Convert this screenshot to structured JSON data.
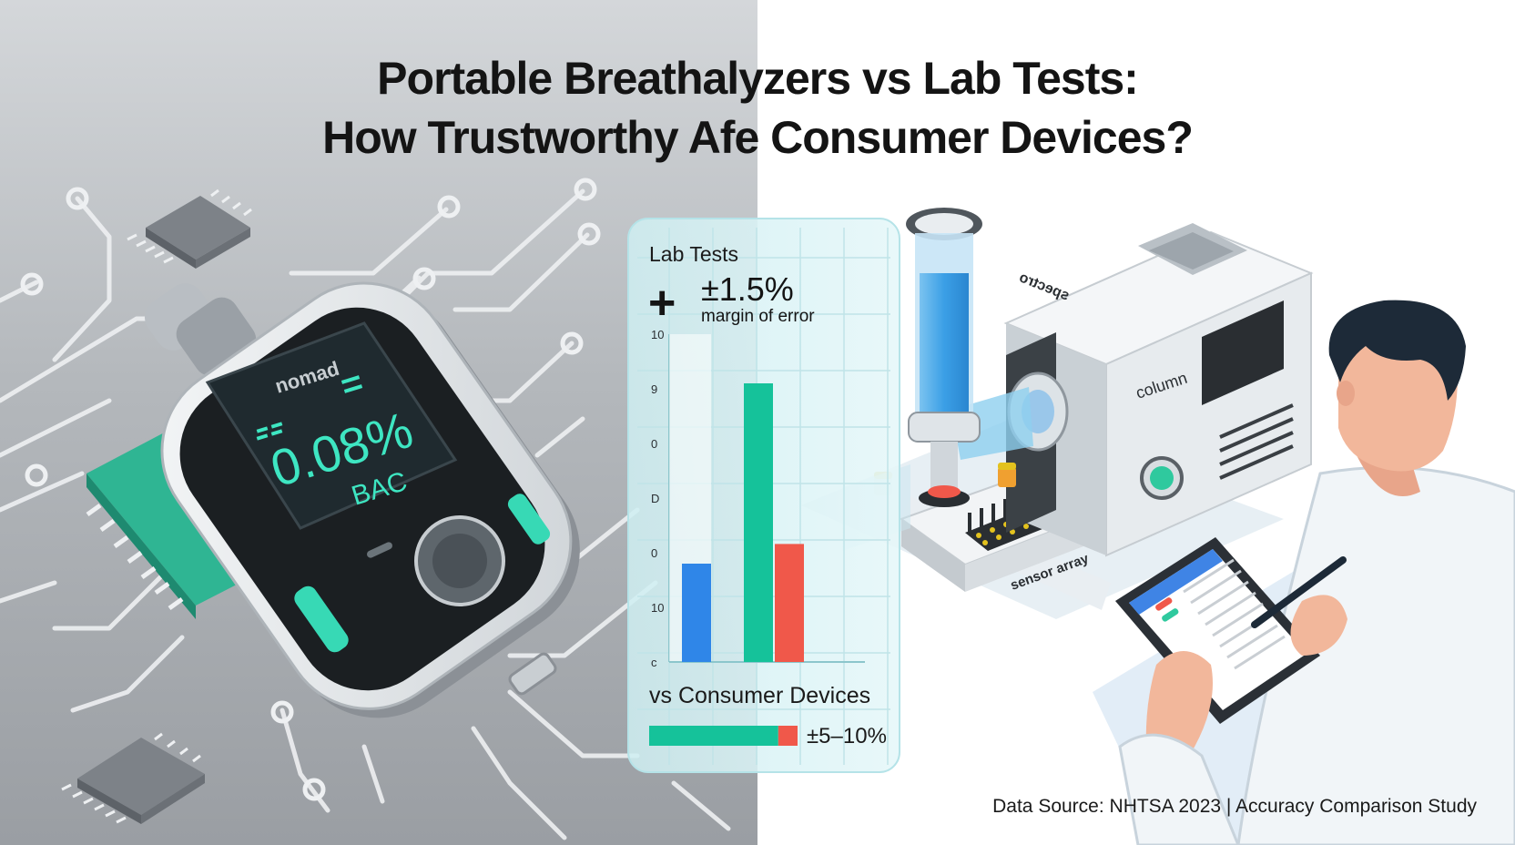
{
  "title": {
    "line1": "Portable Breathalyzers vs Lab Tests:",
    "line2": "How Trustworthy Afe Consumer Devices?"
  },
  "device": {
    "brand": "nomad",
    "reading": "0.08%",
    "unit": "BAC"
  },
  "chart_panel": {
    "lab_label": "Lab Tests",
    "lab_value": "±1.5%",
    "lab_caption": "margin of error",
    "plus_symbol": "+",
    "consumer_label": "vs Consumer Devices",
    "consumer_value": "±5–10%",
    "y_ticks": [
      "10",
      "9",
      "0",
      "D",
      "0",
      "10",
      "c"
    ]
  },
  "chart_data": {
    "type": "bar",
    "categories": [
      "",
      "",
      ""
    ],
    "series": [
      {
        "values": [
          3,
          8.5,
          3.6
        ]
      }
    ],
    "ylim": [
      0,
      10
    ],
    "y_ticks": [
      "10",
      "9",
      "0",
      "D",
      "0",
      "10",
      "c"
    ],
    "colors": [
      "#2f86e8",
      "#15c29a",
      "#f0584a"
    ],
    "consumer_bar": {
      "green_fraction": 0.87,
      "red_fraction": 0.13
    }
  },
  "lab_instrument": {
    "top_label": "spectro",
    "column_label": "column",
    "sensor_label": "sensor array"
  },
  "source": "Data Source: NHTSA 2023 | Accuracy Comparison Study",
  "colors": {
    "accent_green": "#15c29a",
    "accent_blue": "#2f86e8",
    "accent_red": "#f0584a",
    "circuit_bg": "#a7abb0",
    "display_text": "#3ee6c2"
  }
}
